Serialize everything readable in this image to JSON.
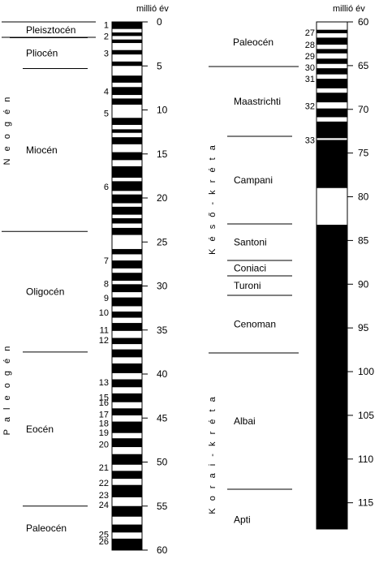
{
  "unit_label": "millió év",
  "left": {
    "supergroups": [
      "N e o g é n",
      "P a l e o g é n"
    ],
    "epochs": [
      {
        "label": "Pleisztocén",
        "top": 0,
        "bottom": 1.8
      },
      {
        "label": "Pliocén",
        "top": 1.8,
        "bottom": 5.3
      },
      {
        "label": "Miocén",
        "top": 5.3,
        "bottom": 23.8
      },
      {
        "label": "Oligocén",
        "top": 23.8,
        "bottom": 37.5
      },
      {
        "label": "Eocén",
        "top": 37.5,
        "bottom": 55.0
      },
      {
        "label": "Paleocén",
        "top": 55.0,
        "bottom": 60
      }
    ],
    "axis": {
      "min": 0,
      "max": 60,
      "ticks": [
        0,
        5,
        10,
        15,
        20,
        25,
        30,
        35,
        40,
        45,
        50,
        55,
        60
      ]
    },
    "chrons": [
      "1",
      "2",
      "3",
      "4",
      "5",
      "6",
      "7",
      "8",
      "9",
      "10",
      "11",
      "12",
      "13",
      "15",
      "16",
      "17",
      "18",
      "19",
      "20",
      "21",
      "22",
      "23",
      "24",
      "25",
      "26"
    ],
    "normal_polarity_intervals": [
      [
        0.0,
        0.8
      ],
      [
        1.2,
        1.6
      ],
      [
        2.0,
        2.4
      ],
      [
        3.2,
        3.7
      ],
      [
        4.5,
        5.0
      ],
      [
        6.1,
        6.9
      ],
      [
        7.4,
        8.3
      ],
      [
        8.7,
        9.4
      ],
      [
        10.9,
        11.7
      ],
      [
        12.2,
        12.6
      ],
      [
        13.1,
        13.9
      ],
      [
        14.8,
        15.7
      ],
      [
        16.4,
        17.7
      ],
      [
        18.1,
        19.2
      ],
      [
        19.6,
        20.6
      ],
      [
        21.0,
        21.9
      ],
      [
        22.3,
        22.9
      ],
      [
        23.4,
        24.2
      ],
      [
        25.8,
        26.4
      ],
      [
        27.1,
        28.0
      ],
      [
        28.5,
        29.4
      ],
      [
        29.8,
        30.7
      ],
      [
        31.3,
        32.3
      ],
      [
        32.9,
        33.6
      ],
      [
        34.2,
        35.1
      ],
      [
        35.9,
        36.6
      ],
      [
        37.2,
        38.1
      ],
      [
        38.8,
        39.9
      ],
      [
        40.6,
        41.5
      ],
      [
        42.2,
        43.2
      ],
      [
        43.9,
        44.7
      ],
      [
        45.4,
        46.7
      ],
      [
        47.3,
        48.3
      ],
      [
        49.1,
        50.3
      ],
      [
        51.0,
        51.9
      ],
      [
        52.6,
        54.0
      ],
      [
        55.0,
        56.2
      ],
      [
        57.1,
        58.0
      ],
      [
        58.7,
        60.0
      ]
    ]
  },
  "right": {
    "top_label": "Paleocén",
    "supergroups": [
      "K é s ő - k r é t a",
      "K o r a i - k r é t a"
    ],
    "stages": [
      {
        "label": "Maastrichti",
        "top": 65.0,
        "bottom": 71.3
      },
      {
        "label": "Campani",
        "top": 71.3,
        "bottom": 83.5
      },
      {
        "label": "Santoni",
        "top": 83.5,
        "bottom": 85.8
      },
      {
        "label": "Coniaci",
        "top": 85.8,
        "bottom": 89.0
      },
      {
        "label": "Turoni",
        "top": 89.0,
        "bottom": 93.5
      },
      {
        "label": "Cenoman",
        "top": 93.5,
        "bottom": 99.0
      },
      {
        "label": "Albai",
        "top": 99.0,
        "bottom": 112.0
      },
      {
        "label": "Apti",
        "top": 112.0,
        "bottom": 118
      }
    ],
    "axis": {
      "min": 60,
      "max": 118,
      "ticks": [
        60,
        65,
        70,
        75,
        80,
        85,
        90,
        95,
        100,
        105,
        110,
        115
      ]
    },
    "chrons": [
      "27",
      "28",
      "29",
      "30",
      "31",
      "32",
      "33"
    ],
    "normal_polarity_intervals": [
      [
        60.9,
        61.3
      ],
      [
        61.8,
        62.6
      ],
      [
        63.1,
        63.6
      ],
      [
        64.2,
        64.8
      ],
      [
        65.3,
        66.0
      ],
      [
        66.5,
        67.6
      ],
      [
        68.1,
        69.2
      ],
      [
        69.9,
        70.9
      ],
      [
        71.4,
        73.3
      ],
      [
        73.5,
        79.0
      ],
      [
        83.2,
        118
      ]
    ]
  }
}
